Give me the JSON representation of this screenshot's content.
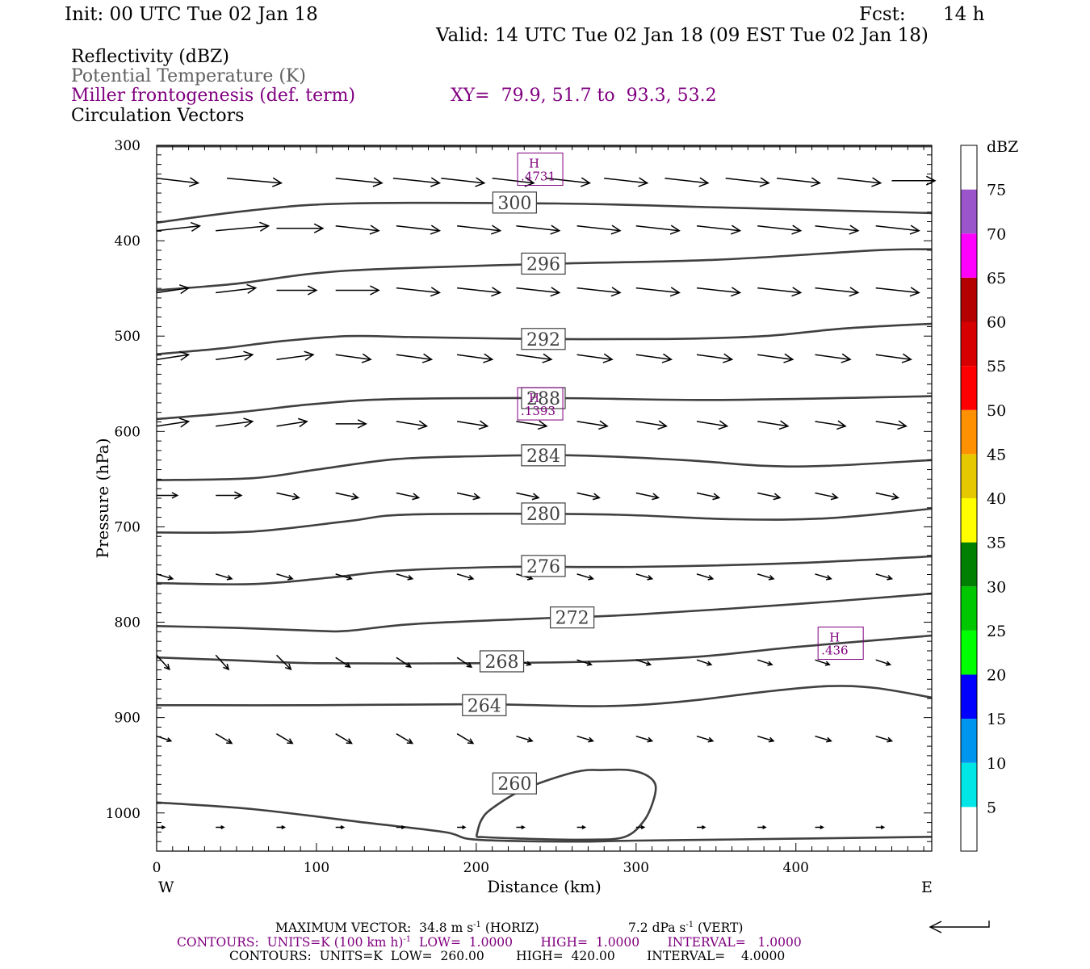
{
  "header": {
    "init": "Init: 00 UTC Tue 02 Jan 18",
    "fcst_label": "Fcst:",
    "fcst_value": "14 h",
    "valid": "Valid: 14 UTC Tue 02 Jan 18 (09 EST Tue 02 Jan 18)"
  },
  "legend": {
    "reflectivity": "Reflectivity (dBZ)",
    "theta": "Potential Temperature (K)",
    "miller": "Miller frontogenesis (def. term)",
    "xy": "XY=  79.9, 51.7 to  93.3, 53.2",
    "vectors": "Circulation Vectors"
  },
  "colors": {
    "theta_line": "#404040",
    "miller": "#800080",
    "theta_legend": "#606060",
    "colorbar": [
      "#ffffff",
      "#00e6e6",
      "#0096f0",
      "#0000ff",
      "#00ff00",
      "#00c800",
      "#008000",
      "#ffff00",
      "#e6c800",
      "#ff9000",
      "#ff0000",
      "#d60000",
      "#b40000",
      "#ff00ff",
      "#9955c9",
      "#ffffff"
    ]
  },
  "colorbar": {
    "unit": "dBZ",
    "ticks": [
      "5",
      "10",
      "15",
      "20",
      "25",
      "30",
      "35",
      "40",
      "45",
      "50",
      "55",
      "60",
      "65",
      "70",
      "75"
    ]
  },
  "chart_data": {
    "type": "contour-cross-section",
    "xlabel": "Distance (km)",
    "ylabel": "Pressure (hPa)",
    "xlim": [
      0,
      485
    ],
    "ylim": [
      1040,
      300
    ],
    "xticks": [
      "0",
      "100",
      "200",
      "300",
      "400"
    ],
    "yticks": [
      "300",
      "400",
      "500",
      "600",
      "700",
      "800",
      "900",
      "1000"
    ],
    "x_end_labels": {
      "left": "W",
      "right": "E"
    },
    "theta_contours": [
      {
        "label": "300",
        "label_x": 224,
        "label_y": 360,
        "points": [
          [
            0,
            381
          ],
          [
            60,
            368
          ],
          [
            120,
            361
          ],
          [
            250,
            361
          ],
          [
            350,
            365
          ],
          [
            485,
            371
          ]
        ]
      },
      {
        "label": "296",
        "label_x": 242,
        "label_y": 424,
        "points": [
          [
            0,
            452
          ],
          [
            50,
            445
          ],
          [
            100,
            434
          ],
          [
            150,
            429
          ],
          [
            250,
            424
          ],
          [
            350,
            420
          ],
          [
            450,
            410
          ],
          [
            485,
            409
          ]
        ]
      },
      {
        "label": "292",
        "label_x": 242,
        "label_y": 503,
        "points": [
          [
            0,
            519
          ],
          [
            40,
            513
          ],
          [
            80,
            505
          ],
          [
            120,
            500
          ],
          [
            160,
            501
          ],
          [
            240,
            503
          ],
          [
            320,
            503
          ],
          [
            380,
            500
          ],
          [
            430,
            492
          ],
          [
            485,
            487
          ]
        ]
      },
      {
        "label": "288",
        "label_x": 242,
        "label_y": 565,
        "points": [
          [
            0,
            587
          ],
          [
            50,
            580
          ],
          [
            100,
            571
          ],
          [
            150,
            566
          ],
          [
            250,
            565
          ],
          [
            350,
            567
          ],
          [
            485,
            563
          ]
        ]
      },
      {
        "label": "284",
        "label_x": 242,
        "label_y": 625,
        "points": [
          [
            0,
            651
          ],
          [
            60,
            649
          ],
          [
            100,
            640
          ],
          [
            150,
            629
          ],
          [
            200,
            626
          ],
          [
            260,
            625
          ],
          [
            330,
            630
          ],
          [
            380,
            636
          ],
          [
            420,
            636
          ],
          [
            485,
            630
          ]
        ]
      },
      {
        "label": "280",
        "label_x": 242,
        "label_y": 686,
        "points": [
          [
            0,
            706
          ],
          [
            60,
            705
          ],
          [
            120,
            694
          ],
          [
            160,
            687
          ],
          [
            280,
            687
          ],
          [
            360,
            692
          ],
          [
            420,
            691
          ],
          [
            485,
            681
          ]
        ]
      },
      {
        "label": "276",
        "label_x": 242,
        "label_y": 741,
        "points": [
          [
            0,
            759
          ],
          [
            60,
            760
          ],
          [
            110,
            753
          ],
          [
            150,
            746
          ],
          [
            220,
            742
          ],
          [
            300,
            742
          ],
          [
            400,
            738
          ],
          [
            485,
            731
          ]
        ]
      },
      {
        "label": "272",
        "label_x": 260,
        "label_y": 795,
        "points": [
          [
            0,
            804
          ],
          [
            50,
            806
          ],
          [
            100,
            809
          ],
          [
            120,
            809
          ],
          [
            160,
            802
          ],
          [
            240,
            796
          ],
          [
            300,
            792
          ],
          [
            400,
            781
          ],
          [
            485,
            770
          ]
        ]
      },
      {
        "label": "268",
        "label_x": 216,
        "label_y": 841,
        "points": [
          [
            0,
            837
          ],
          [
            50,
            840
          ],
          [
            100,
            843
          ],
          [
            200,
            843
          ],
          [
            280,
            841
          ],
          [
            340,
            836
          ],
          [
            400,
            826
          ],
          [
            485,
            814
          ]
        ]
      },
      {
        "label": "264",
        "label_x": 205,
        "label_y": 887,
        "points": [
          [
            0,
            887
          ],
          [
            100,
            887
          ],
          [
            200,
            886
          ],
          [
            280,
            888
          ],
          [
            330,
            883
          ],
          [
            380,
            873
          ],
          [
            420,
            867
          ],
          [
            450,
            869
          ],
          [
            485,
            879
          ]
        ]
      },
      {
        "label": "260",
        "label_x": 224,
        "label_y": 969,
        "points": [
          [
            0,
            989
          ],
          [
            60,
            996
          ],
          [
            130,
            1010
          ],
          [
            180,
            1020
          ],
          [
            200,
            1028
          ],
          [
            260,
            1030
          ],
          [
            300,
            1029
          ],
          [
            400,
            1027
          ],
          [
            485,
            1025
          ]
        ]
      }
    ],
    "theta_closed_contour": {
      "label": "260",
      "points": [
        [
          200,
          1025
        ],
        [
          203,
          1008
        ],
        [
          210,
          995
        ],
        [
          230,
          975
        ],
        [
          262,
          957
        ],
        [
          280,
          955
        ],
        [
          295,
          955
        ],
        [
          306,
          960
        ],
        [
          312,
          970
        ],
        [
          311,
          986
        ],
        [
          305,
          1008
        ],
        [
          293,
          1025
        ],
        [
          270,
          1028
        ],
        [
          230,
          1027
        ],
        [
          200,
          1025
        ]
      ]
    },
    "miller_highs": [
      {
        "label": "H",
        "value": ".4731",
        "x": 240,
        "y": 325
      },
      {
        "label": "H",
        "value": ".1393",
        "x": 240,
        "y": 571
      },
      {
        "label": "H",
        "value": ".436",
        "x": 428,
        "y": 822
      }
    ],
    "circulation_vectors": [
      {
        "y": 337,
        "x": [
          0,
          44,
          112,
          148,
          178,
          210,
          244,
          280,
          318,
          356,
          388,
          426,
          460
        ],
        "u": [
          26,
          34,
          29,
          29,
          27,
          26,
          27,
          27,
          27,
          27,
          27,
          27,
          27
        ],
        "v": [
          5,
          5,
          5,
          5,
          5,
          5,
          5,
          5,
          5,
          5,
          5,
          5,
          0
        ]
      },
      {
        "y": 387,
        "x": [
          0,
          37,
          75,
          112,
          150,
          188,
          225,
          263,
          300,
          338,
          376,
          412,
          450
        ],
        "u": [
          27,
          33,
          29,
          27,
          27,
          27,
          27,
          27,
          27,
          27,
          27,
          27,
          27
        ],
        "v": [
          -5,
          -5,
          0,
          5,
          5,
          5,
          5,
          5,
          5,
          5,
          5,
          5,
          5
        ]
      },
      {
        "y": 452,
        "x": [
          0,
          37,
          75,
          112,
          150,
          188,
          225,
          263,
          300,
          338,
          376,
          412,
          450
        ],
        "u": [
          20,
          25,
          25,
          27,
          27,
          27,
          27,
          27,
          27,
          27,
          27,
          27,
          27
        ],
        "v": [
          -5,
          -5,
          0,
          0,
          5,
          5,
          5,
          5,
          5,
          5,
          5,
          5,
          5
        ]
      },
      {
        "y": 522,
        "x": [
          0,
          37,
          75,
          112,
          150,
          188,
          225,
          263,
          300,
          338,
          376,
          412,
          450
        ],
        "u": [
          20,
          23,
          23,
          22,
          22,
          22,
          22,
          22,
          22,
          22,
          22,
          22,
          22
        ],
        "v": [
          -5,
          -5,
          -5,
          5,
          5,
          5,
          5,
          5,
          5,
          5,
          5,
          5,
          5
        ]
      },
      {
        "y": 592,
        "x": [
          0,
          37,
          75,
          112,
          150,
          188,
          225,
          263,
          300,
          338,
          376,
          412,
          450
        ],
        "u": [
          20,
          23,
          19,
          19,
          19,
          19,
          19,
          19,
          19,
          19,
          19,
          19,
          19
        ],
        "v": [
          -5,
          -5,
          -5,
          0,
          5,
          5,
          5,
          5,
          5,
          5,
          5,
          5,
          5
        ]
      },
      {
        "y": 667,
        "x": [
          0,
          37,
          75,
          112,
          150,
          188,
          225,
          263,
          300,
          338,
          376,
          412,
          450
        ],
        "u": [
          13,
          16,
          14,
          14,
          14,
          14,
          14,
          14,
          14,
          14,
          14,
          14,
          14
        ],
        "v": [
          0,
          0,
          5,
          5,
          5,
          5,
          5,
          5,
          5,
          5,
          5,
          5,
          5
        ]
      },
      {
        "y": 752,
        "x": [
          0,
          37,
          75,
          112,
          150,
          188,
          225,
          263,
          300,
          338,
          376,
          412,
          450
        ],
        "u": [
          10,
          10,
          10,
          10,
          10,
          10,
          10,
          10,
          10,
          10,
          10,
          10,
          10
        ],
        "v": [
          5,
          5,
          5,
          5,
          5,
          5,
          5,
          5,
          5,
          5,
          5,
          5,
          5
        ]
      },
      {
        "y": 842,
        "x": [
          0,
          37,
          75,
          112,
          150,
          188,
          225,
          263,
          300,
          338,
          376,
          412,
          450
        ],
        "u": [
          8,
          8,
          9,
          9,
          9,
          9,
          9,
          9,
          9,
          9,
          9,
          9,
          9
        ],
        "v": [
          15,
          15,
          15,
          10,
          10,
          10,
          5,
          5,
          5,
          5,
          5,
          5,
          5
        ]
      },
      {
        "y": 922,
        "x": [
          0,
          37,
          75,
          112,
          150,
          188,
          225,
          263,
          300,
          338,
          376,
          412,
          450
        ],
        "u": [
          9,
          10,
          10,
          10,
          10,
          10,
          10,
          10,
          10,
          10,
          10,
          10,
          10
        ],
        "v": [
          5,
          10,
          10,
          10,
          10,
          10,
          5,
          5,
          5,
          5,
          5,
          5,
          5
        ]
      },
      {
        "y": 1015,
        "x": [
          0,
          37,
          75,
          112,
          150,
          188,
          225,
          263,
          300,
          338,
          376,
          412,
          450
        ],
        "u": [
          5,
          5,
          5,
          5,
          5,
          5,
          5,
          5,
          5,
          5,
          5,
          5,
          5
        ],
        "v": [
          0,
          0,
          0,
          0,
          0,
          0,
          0,
          0,
          0,
          0,
          0,
          0,
          0
        ]
      }
    ]
  },
  "footer": {
    "max_vector_label": "MAXIMUM VECTOR:",
    "max_vector_horiz": "34.8 m s",
    "max_vector_horiz_exp": "-1",
    "max_vector_horiz_tag": " (HORIZ)",
    "max_vector_vert": "7.2 dPa s",
    "max_vector_vert_exp": "-1",
    "max_vector_vert_tag": " (VERT)",
    "contours_miller_a": "CONTOURS:  UNITS=K (100 km h)",
    "contours_miller_exp": "-1",
    "contours_miller_b": "  LOW=  1.0000       HIGH=  1.0000       INTERVAL=   1.0000",
    "contours_theta": "CONTOURS:  UNITS=K  LOW=  260.00        HIGH=  420.00        INTERVAL=    4.0000"
  }
}
